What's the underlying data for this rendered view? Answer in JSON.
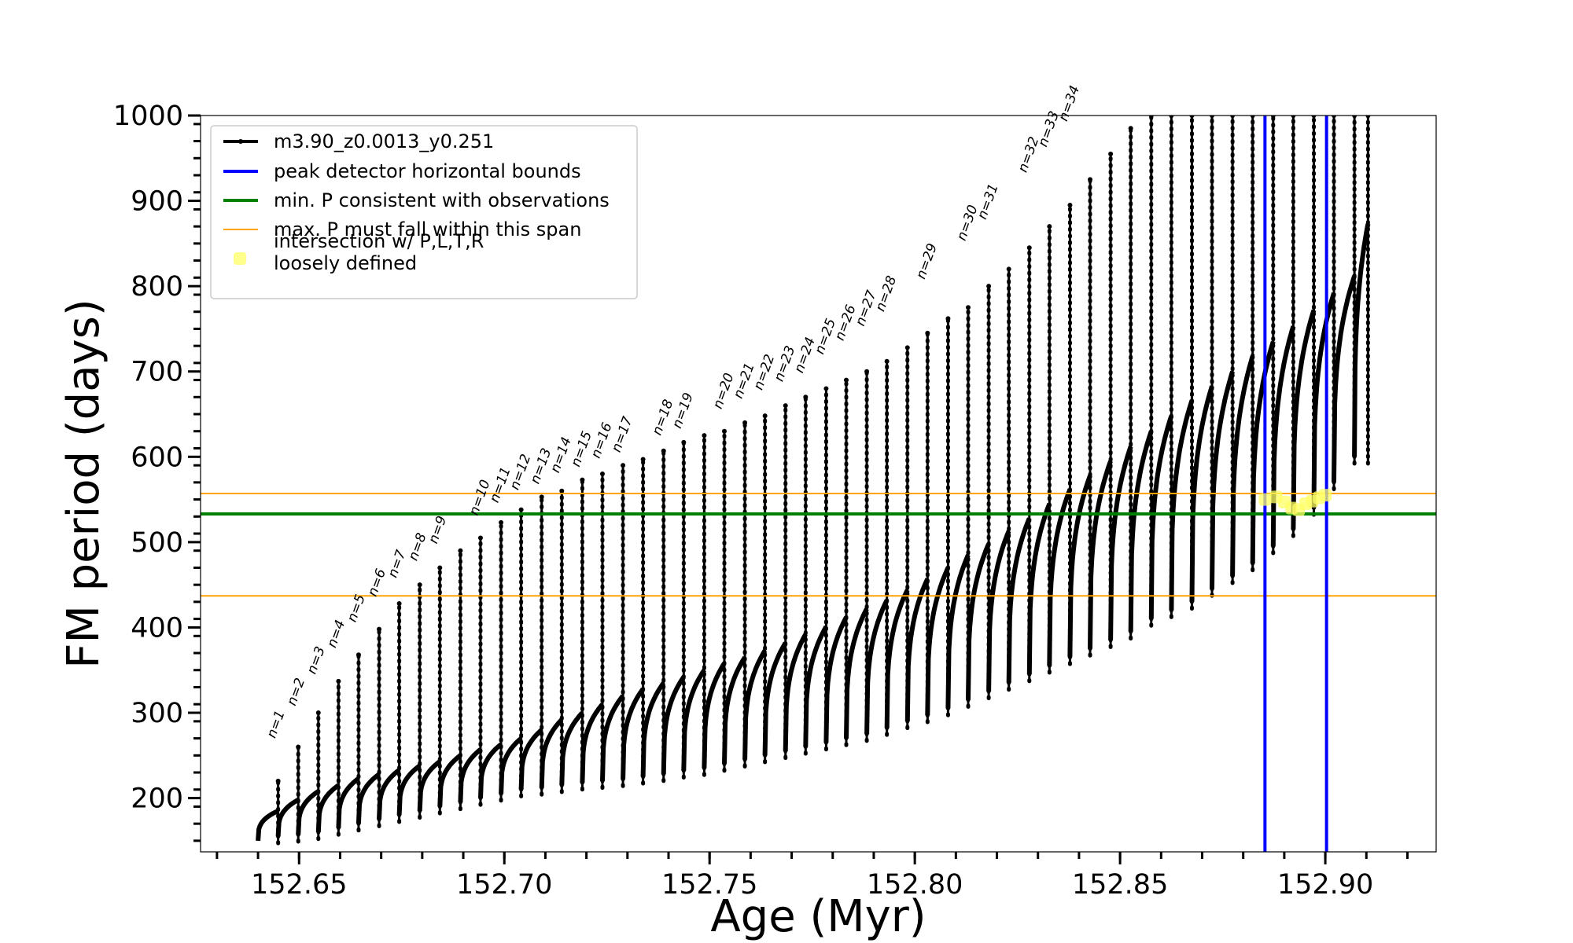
{
  "chart_data": {
    "type": "line",
    "xlabel": "Age (Myr)",
    "ylabel": "FM period (days)",
    "xlim": [
      152.626,
      152.927
    ],
    "ylim": [
      137,
      1000
    ],
    "x_ticks": [
      "152.65",
      "152.70",
      "152.75",
      "152.80",
      "152.85",
      "152.90"
    ],
    "x_tick_values": [
      152.65,
      152.7,
      152.75,
      152.8,
      152.85,
      152.9
    ],
    "y_ticks": [
      "200",
      "300",
      "400",
      "500",
      "600",
      "700",
      "800",
      "900",
      "1000"
    ],
    "y_tick_values": [
      200,
      300,
      400,
      500,
      600,
      700,
      800,
      900,
      1000
    ],
    "legend": {
      "placement": "top-left",
      "entries": [
        {
          "label": "m3.90_z0.0013_y0.251",
          "color": "#000000",
          "kind": "line-marker"
        },
        {
          "label": "peak detector horizontal bounds",
          "color": "#0000ff",
          "kind": "line"
        },
        {
          "label": "min. P consistent with observations",
          "color": "#008000",
          "kind": "line"
        },
        {
          "label": "max. P must fall within this span",
          "color": "#ffa500",
          "kind": "line"
        },
        {
          "label": "intersection w/ P,L,T,R",
          "label2": "loosely defined",
          "color": "#ffff66",
          "kind": "marker"
        }
      ]
    },
    "series_track": {
      "name": "m3.90_z0.0013_y0.251",
      "color": "#000000",
      "cycle_start_ages": [
        152.64,
        152.6449,
        152.6498,
        152.6547,
        152.6596,
        152.6645,
        152.6695,
        152.6744,
        152.6794,
        152.6843,
        152.6893,
        152.6942,
        152.6992,
        152.7041,
        152.7091,
        152.714,
        152.719,
        152.7239,
        152.7289,
        152.7338,
        152.7388,
        152.7437,
        152.7487,
        152.7536,
        152.7586,
        152.7635,
        152.7685,
        152.7734,
        152.7784,
        152.7833,
        152.7883,
        152.7932,
        152.7982,
        152.8031,
        152.8081,
        152.813,
        152.818,
        152.8229,
        152.8279,
        152.8328,
        152.8378,
        152.8427,
        152.8477,
        152.8526,
        152.8576,
        152.8625,
        152.8675,
        152.8724,
        152.8774,
        152.8823,
        152.8873,
        152.8922,
        152.8972,
        152.9021,
        152.9071
      ],
      "cycle_base_period": [
        150,
        155,
        157,
        160,
        165,
        170,
        175,
        180,
        185,
        190,
        195,
        200,
        205,
        210,
        212,
        215,
        218,
        220,
        222,
        225,
        228,
        232,
        235,
        240,
        245,
        250,
        255,
        260,
        265,
        270,
        275,
        282,
        290,
        297,
        305,
        315,
        325,
        335,
        345,
        355,
        365,
        375,
        385,
        395,
        410,
        420,
        430,
        445,
        460,
        475,
        495,
        515,
        540,
        570,
        600
      ],
      "cycle_peak_period": [
        185,
        198,
        208,
        215,
        223,
        228,
        233,
        238,
        243,
        250,
        257,
        263,
        270,
        280,
        292,
        300,
        310,
        320,
        328,
        335,
        342,
        350,
        358,
        365,
        373,
        382,
        392,
        401,
        412,
        422,
        432,
        444,
        457,
        470,
        485,
        498,
        513,
        528,
        545,
        562,
        578,
        595,
        612,
        630,
        648,
        666,
        683,
        700,
        718,
        735,
        753,
        772,
        792,
        812,
        873
      ],
      "spike_top_period": [
        220,
        260,
        300,
        337,
        368,
        398,
        428,
        450,
        470,
        490,
        505,
        523,
        538,
        553,
        560,
        573,
        580,
        590,
        597,
        607,
        617,
        625,
        630,
        640,
        648,
        660,
        670,
        680,
        690,
        700,
        712,
        728,
        745,
        762,
        775,
        800,
        820,
        845,
        870,
        895,
        925,
        955,
        985,
        1000,
        1000,
        1000,
        1000,
        1000,
        1000,
        1000,
        1000,
        1000,
        1000,
        1000,
        1000
      ],
      "final_age": 152.9104
    },
    "mode_labels": [
      {
        "label": "n=1",
        "x": 152.6449,
        "y": 262
      },
      {
        "label": "n=2",
        "x": 152.6498,
        "y": 300
      },
      {
        "label": "n=3",
        "x": 152.6547,
        "y": 337
      },
      {
        "label": "n=4",
        "x": 152.6596,
        "y": 368
      },
      {
        "label": "n=5",
        "x": 152.6645,
        "y": 398
      },
      {
        "label": "n=6",
        "x": 152.6695,
        "y": 428
      },
      {
        "label": "n=7",
        "x": 152.6744,
        "y": 450
      },
      {
        "label": "n=8",
        "x": 152.6794,
        "y": 470
      },
      {
        "label": "n=9",
        "x": 152.6843,
        "y": 490
      },
      {
        "label": "n=10",
        "x": 152.6942,
        "y": 523
      },
      {
        "label": "n=11",
        "x": 152.6992,
        "y": 538
      },
      {
        "label": "n=12",
        "x": 152.7041,
        "y": 553
      },
      {
        "label": "n=13",
        "x": 152.7091,
        "y": 560
      },
      {
        "label": "n=14",
        "x": 152.714,
        "y": 573
      },
      {
        "label": "n=15",
        "x": 152.719,
        "y": 580
      },
      {
        "label": "n=16",
        "x": 152.7239,
        "y": 590
      },
      {
        "label": "n=17",
        "x": 152.7289,
        "y": 597
      },
      {
        "label": "n=18",
        "x": 152.7388,
        "y": 617
      },
      {
        "label": "n=19",
        "x": 152.7437,
        "y": 625
      },
      {
        "label": "n=20",
        "x": 152.7536,
        "y": 648
      },
      {
        "label": "n=21",
        "x": 152.7586,
        "y": 660
      },
      {
        "label": "n=22",
        "x": 152.7635,
        "y": 670
      },
      {
        "label": "n=23",
        "x": 152.7685,
        "y": 680
      },
      {
        "label": "n=24",
        "x": 152.7734,
        "y": 690
      },
      {
        "label": "n=25",
        "x": 152.7784,
        "y": 712
      },
      {
        "label": "n=26",
        "x": 152.7833,
        "y": 728
      },
      {
        "label": "n=27",
        "x": 152.7883,
        "y": 745
      },
      {
        "label": "n=28",
        "x": 152.7932,
        "y": 762
      },
      {
        "label": "n=29",
        "x": 152.8031,
        "y": 800
      },
      {
        "label": "n=30",
        "x": 152.813,
        "y": 845
      },
      {
        "label": "n=31",
        "x": 152.818,
        "y": 870
      },
      {
        "label": "n=32",
        "x": 152.8279,
        "y": 925
      },
      {
        "label": "n=33",
        "x": 152.8328,
        "y": 955
      },
      {
        "label": "n=34",
        "x": 152.8378,
        "y": 985
      }
    ],
    "vertical_lines": [
      {
        "name": "peak detector horizontal bounds (left)",
        "x": 152.8853,
        "color": "#0000ff"
      },
      {
        "name": "peak detector horizontal bounds (right)",
        "x": 152.9003,
        "color": "#0000ff"
      }
    ],
    "horizontal_lines": [
      {
        "name": "min. P consistent with observations",
        "y": 533,
        "color": "#008000"
      },
      {
        "name": "max. P span upper",
        "y": 557,
        "color": "#ffa500"
      },
      {
        "name": "max. P span lower",
        "y": 437,
        "color": "#ffa500"
      }
    ],
    "intersection_points": [
      {
        "x": 152.8853,
        "y": 550
      },
      {
        "x": 152.888,
        "y": 553
      },
      {
        "x": 152.89,
        "y": 547
      },
      {
        "x": 152.8918,
        "y": 540
      },
      {
        "x": 152.8935,
        "y": 538
      },
      {
        "x": 152.8952,
        "y": 545
      },
      {
        "x": 152.8968,
        "y": 548
      },
      {
        "x": 152.8985,
        "y": 552
      },
      {
        "x": 152.9,
        "y": 555
      }
    ],
    "grid": false
  }
}
